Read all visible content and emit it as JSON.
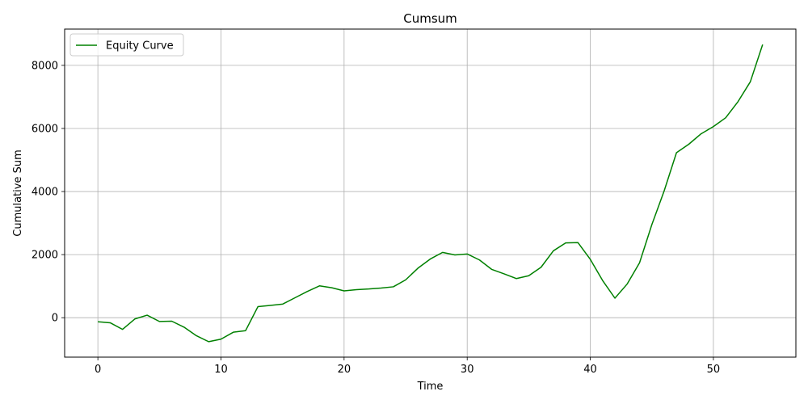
{
  "chart_data": {
    "type": "line",
    "title": "Cumsum",
    "xlabel": "Time",
    "ylabel": "Cumulative Sum",
    "xlim": [
      -2.7,
      56.7
    ],
    "ylim": [
      -1250,
      9150
    ],
    "xticks": [
      0,
      10,
      20,
      30,
      40,
      50
    ],
    "yticks": [
      0,
      2000,
      4000,
      6000,
      8000
    ],
    "grid": true,
    "legend_position": "upper left",
    "series": [
      {
        "name": "Equity Curve",
        "color": "#008000",
        "x": [
          0,
          1,
          2,
          3,
          4,
          5,
          6,
          7,
          8,
          9,
          10,
          11,
          12,
          13,
          14,
          15,
          16,
          17,
          18,
          19,
          20,
          21,
          22,
          23,
          24,
          25,
          26,
          27,
          28,
          29,
          30,
          31,
          32,
          33,
          34,
          35,
          36,
          37,
          38,
          39,
          40,
          41,
          42,
          43,
          44,
          45,
          46,
          47,
          48,
          49,
          50,
          51,
          52,
          53,
          54
        ],
        "y": [
          -130,
          -160,
          -370,
          -40,
          80,
          -120,
          -110,
          -300,
          -570,
          -760,
          -680,
          -460,
          -410,
          350,
          390,
          430,
          630,
          830,
          1010,
          950,
          850,
          890,
          910,
          940,
          980,
          1200,
          1570,
          1860,
          2070,
          1990,
          2020,
          1830,
          1530,
          1390,
          1240,
          1330,
          1600,
          2120,
          2370,
          2380,
          1850,
          1180,
          620,
          1070,
          1740,
          2950,
          4020,
          5230,
          5500,
          5830,
          6060,
          6340,
          6850,
          7480,
          8660
        ]
      }
    ]
  }
}
